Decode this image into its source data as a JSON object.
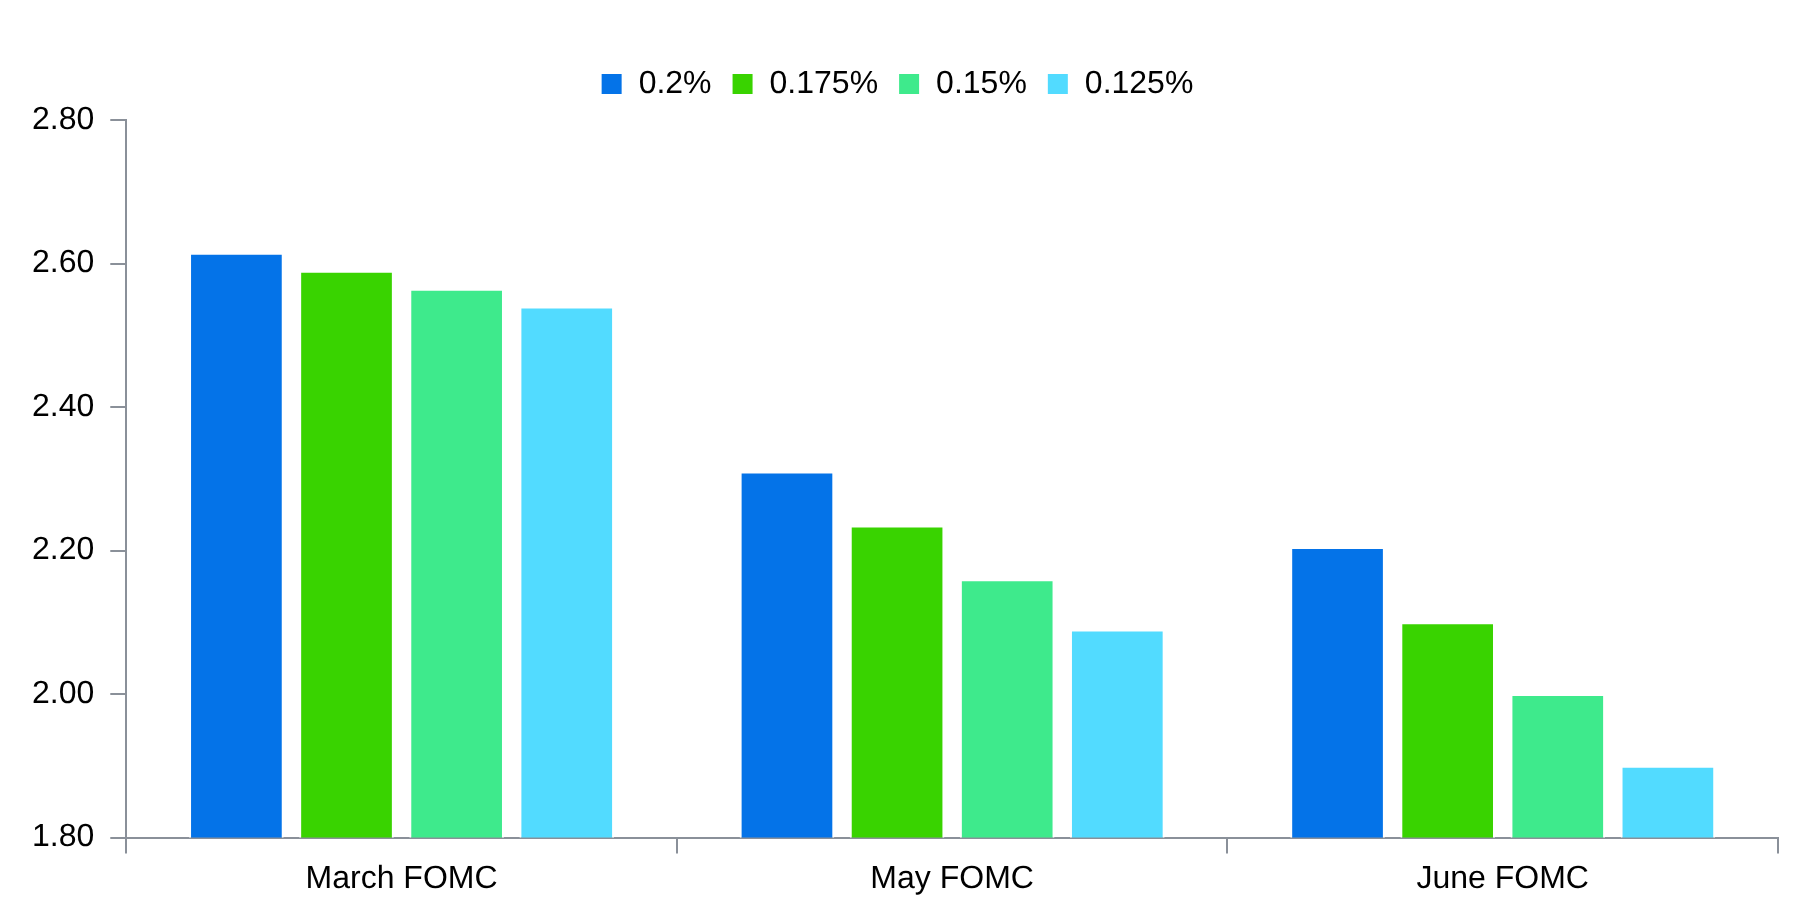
{
  "chart_data": {
    "type": "bar",
    "categories": [
      "March FOMC",
      "May FOMC",
      "June FOMC"
    ],
    "series": [
      {
        "name": "0.2%",
        "color": "#0473e8",
        "values": [
          2.615,
          2.31,
          2.205
        ]
      },
      {
        "name": "0.175%",
        "color": "#39d300",
        "values": [
          2.59,
          2.235,
          2.1
        ]
      },
      {
        "name": "0.15%",
        "color": "#3eea8c",
        "values": [
          2.565,
          2.16,
          2.0
        ]
      },
      {
        "name": "0.125%",
        "color": "#52dbff",
        "values": [
          2.54,
          2.09,
          1.9
        ]
      }
    ],
    "ylim": [
      1.8,
      2.8
    ],
    "yticks": [
      {
        "value": 1.8,
        "label": "1.80"
      },
      {
        "value": 2.0,
        "label": "2.00"
      },
      {
        "value": 2.2,
        "label": "2.20"
      },
      {
        "value": 2.4,
        "label": "2.40"
      },
      {
        "value": 2.6,
        "label": "2.60"
      },
      {
        "value": 2.8,
        "label": "2.80"
      }
    ],
    "grid": false,
    "legend": "top"
  }
}
